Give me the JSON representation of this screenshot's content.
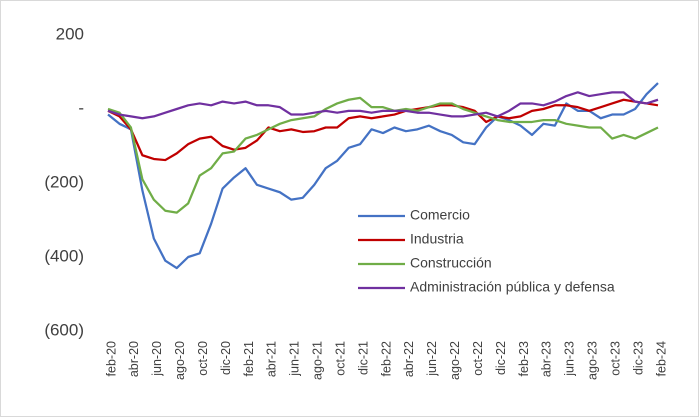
{
  "chart_data": {
    "type": "line",
    "categories": [
      "feb-20",
      null,
      "abr-20",
      null,
      "jun-20",
      null,
      "ago-20",
      null,
      "oct-20",
      null,
      "dic-20",
      null,
      "feb-21",
      null,
      "abr-21",
      null,
      "jun-21",
      null,
      "ago-21",
      null,
      "oct-21",
      null,
      "dic-21",
      null,
      "feb-22",
      null,
      "abr-22",
      null,
      "jun-22",
      null,
      "ago-22",
      null,
      "oct-22",
      null,
      "dic-22",
      null,
      "feb-23",
      null,
      "abr-23",
      null,
      "jun-23",
      null,
      "ago-23",
      null,
      "oct-23",
      null,
      "dic-23",
      null,
      "feb-24"
    ],
    "series": [
      {
        "name": "Comercio",
        "color": "#4472c4",
        "values": [
          -15,
          -40,
          -55,
          -220,
          -350,
          -410,
          -430,
          -400,
          -390,
          -310,
          -215,
          -185,
          -160,
          -205,
          -215,
          -225,
          -245,
          -240,
          -205,
          -160,
          -140,
          -105,
          -95,
          -55,
          -65,
          -50,
          -60,
          -55,
          -45,
          -60,
          -70,
          -90,
          -95,
          -50,
          -20,
          -30,
          -45,
          -70,
          -40,
          -45,
          15,
          -5,
          -5,
          -25,
          -15,
          -15,
          0,
          40,
          70
        ]
      },
      {
        "name": "Industria",
        "color": "#c00000",
        "values": [
          -5,
          -20,
          -55,
          -125,
          -135,
          -138,
          -120,
          -95,
          -80,
          -75,
          -100,
          -110,
          -105,
          -85,
          -50,
          -60,
          -55,
          -62,
          -60,
          -50,
          -50,
          -25,
          -20,
          -25,
          -20,
          -15,
          -5,
          0,
          5,
          10,
          10,
          5,
          -5,
          -35,
          -20,
          -25,
          -20,
          -5,
          0,
          10,
          10,
          5,
          -5,
          5,
          15,
          25,
          20,
          15,
          10
        ]
      },
      {
        "name": "Construcción",
        "color": "#70ad47",
        "values": [
          0,
          -10,
          -50,
          -190,
          -245,
          -275,
          -280,
          -255,
          -180,
          -160,
          -120,
          -115,
          -80,
          -70,
          -55,
          -40,
          -30,
          -25,
          -20,
          0,
          15,
          25,
          30,
          5,
          5,
          -5,
          0,
          -5,
          5,
          15,
          15,
          0,
          -10,
          -20,
          -30,
          -35,
          -35,
          -35,
          -30,
          -30,
          -40,
          -45,
          -50,
          -50,
          -80,
          -70,
          -80,
          -65,
          -50
        ]
      },
      {
        "name": "Administración pública y defensa",
        "color": "#7030a0",
        "values": [
          -5,
          -15,
          -20,
          -25,
          -20,
          -10,
          0,
          10,
          15,
          10,
          20,
          15,
          20,
          10,
          10,
          5,
          -15,
          -15,
          -10,
          -5,
          -10,
          -5,
          -5,
          -10,
          -5,
          -5,
          -5,
          -10,
          -10,
          -15,
          -20,
          -20,
          -15,
          -10,
          -20,
          -5,
          15,
          15,
          10,
          20,
          35,
          45,
          35,
          40,
          45,
          45,
          20,
          15,
          25
        ]
      }
    ],
    "ylim": [
      -600,
      200
    ],
    "yticks": [
      200,
      {
        "value": 0,
        "label": "-"
      },
      {
        "value": -200,
        "label": "(200)"
      },
      {
        "value": -400,
        "label": "(400)"
      },
      {
        "value": -600,
        "label": "(600)"
      }
    ],
    "grid": false
  }
}
